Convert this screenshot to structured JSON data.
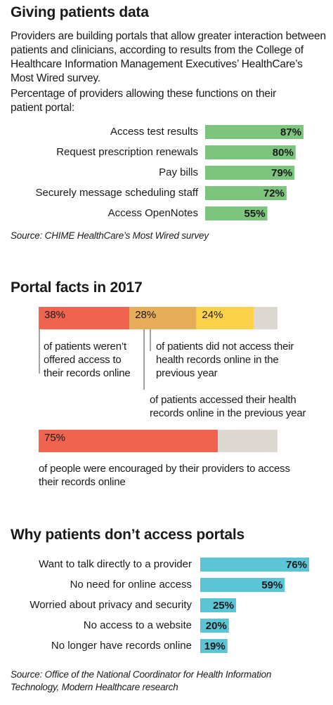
{
  "chart_data": [
    {
      "type": "bar",
      "title": "Giving patients data",
      "description": "Providers are building portals that allow greater interaction between patients and clinicians, according to results from the College of Healthcare Information Management Executives’ HealthCare’s Most Wired survey.",
      "subtitle": "Percentage of providers allowing these functions on their patient portal:",
      "categories": [
        "Access test results",
        "Request prescription renewals",
        "Pay bills",
        "Securely message scheduling staff",
        "Access OpenNotes"
      ],
      "values": [
        87,
        80,
        79,
        72,
        55
      ],
      "value_labels": [
        "87%",
        "80%",
        "79%",
        "72%",
        "55%"
      ],
      "color": "#7dc57f",
      "xlim": [
        0,
        100
      ],
      "source": "Source: CHIME HealthCare’s Most Wired survey"
    },
    {
      "type": "stacked-bar",
      "title": "Portal facts in 2017",
      "xlim": [
        0,
        100
      ],
      "track_color": "#ddd8d1",
      "bars": [
        {
          "values": [
            38,
            28,
            24
          ],
          "value_labels": [
            "38%",
            "28%",
            "24%"
          ],
          "colors": [
            "#f0644f",
            "#e6ad5b",
            "#fdd24b"
          ],
          "annotations": [
            "of patients weren’t offered access to their records online",
            "of patients accessed their health records online in the previous year",
            "of patients did not access their health records online in the previous year"
          ]
        },
        {
          "values": [
            75
          ],
          "value_labels": [
            "75%"
          ],
          "colors": [
            "#f0644f"
          ],
          "annotations": [
            "of people were encouraged by their providers to access their records online"
          ]
        }
      ]
    },
    {
      "type": "bar",
      "title": "Why patients don’t access portals",
      "categories": [
        "Want to talk directly to a provider",
        "No need for online access",
        "Worried about privacy and security",
        "No access to a website",
        "No longer have records online"
      ],
      "values": [
        76,
        59,
        25,
        20,
        19
      ],
      "value_labels": [
        "76%",
        "59%",
        "25%",
        "20%",
        "19%"
      ],
      "color": "#5bc5d5",
      "xlim": [
        0,
        100
      ],
      "source": "Source: Office of the National Coordinator for Health Information Technology, Modern Healthcare research"
    }
  ]
}
